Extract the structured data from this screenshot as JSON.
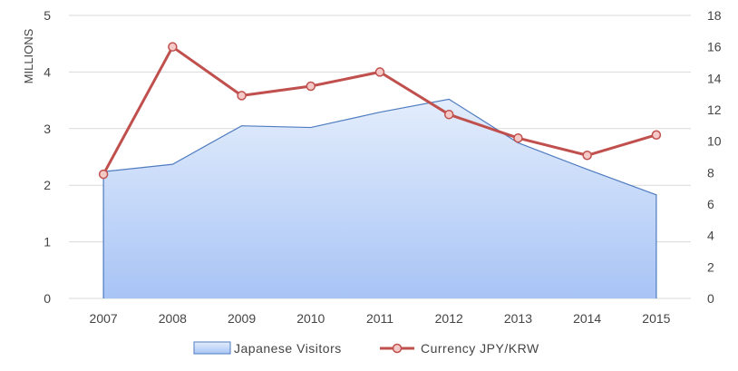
{
  "chart_data": {
    "type": "area",
    "categories": [
      "2007",
      "2008",
      "2009",
      "2010",
      "2011",
      "2012",
      "2013",
      "2014",
      "2015"
    ],
    "series": [
      {
        "name": "Japanese Visitors",
        "type": "area",
        "axis": "left",
        "values": [
          2.24,
          2.37,
          3.05,
          3.02,
          3.29,
          3.52,
          2.75,
          2.28,
          1.83
        ]
      },
      {
        "name": "Currency JPY/KRW",
        "type": "line",
        "axis": "right",
        "values": [
          7.9,
          16.0,
          12.9,
          13.5,
          14.4,
          11.7,
          10.2,
          9.1,
          10.4
        ]
      }
    ],
    "ylabel": "MILLIONS",
    "ylim": [
      0,
      5
    ],
    "yticks": [
      "0",
      "1",
      "2",
      "3",
      "4",
      "5"
    ],
    "y2lim": [
      0,
      18
    ],
    "y2ticks": [
      "0",
      "2",
      "4",
      "6",
      "8",
      "10",
      "12",
      "14",
      "16",
      "18"
    ],
    "grid": true,
    "legend": "bottom"
  },
  "colors": {
    "area_top": "#e3edfc",
    "area_bottom": "#a8c4f5",
    "area_line": "#4f7cc0",
    "line": "#c0504d",
    "marker_fill": "#f4c9c7",
    "grid": "#d9d9d9"
  }
}
